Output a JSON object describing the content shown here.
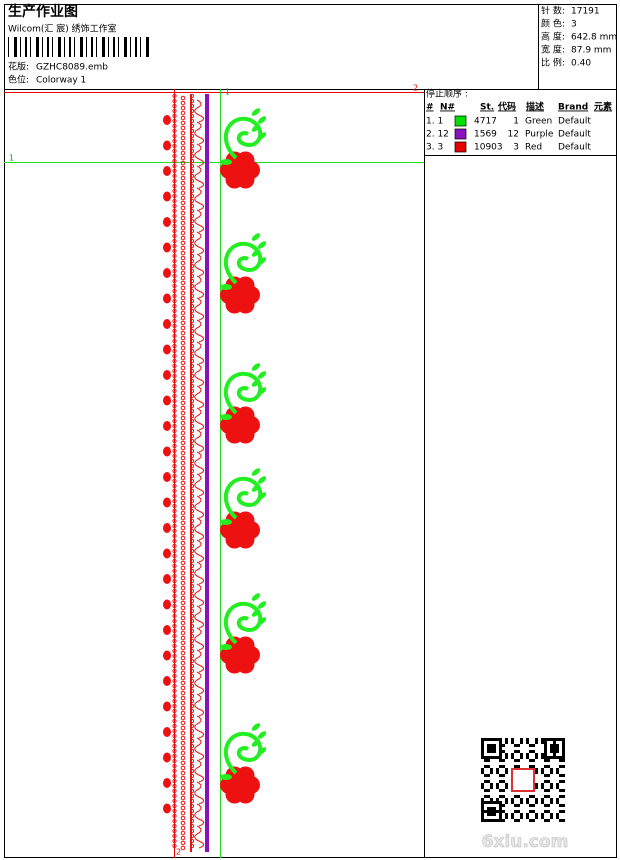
{
  "header": {
    "title": "生产作业图",
    "studio": "Wilcom(汇 宸) 绣饰工作室",
    "fields": [
      {
        "label": "花版:",
        "value": "GZHC8089.emb"
      },
      {
        "label": "色位:",
        "value": "Colorway 1"
      }
    ]
  },
  "info": [
    {
      "label": "针 数:",
      "value": "17191"
    },
    {
      "label": "颜 色:",
      "value": "3"
    },
    {
      "label": "高 度:",
      "value": "642.8 mm"
    },
    {
      "label": "宽 度:",
      "value": "87.9 mm"
    },
    {
      "label": "比 例:",
      "value": "0.40"
    }
  ],
  "stop_sequence": {
    "title": "停止顺序 :",
    "headers": [
      "#",
      "N#",
      "St.",
      "代码",
      "描述",
      "Brand",
      "元素"
    ],
    "rows": [
      {
        "index": "1. 1",
        "color": "#00e000",
        "stitches": "4717",
        "code": "1",
        "description": "Green",
        "brand": "Default"
      },
      {
        "index": "2. 12",
        "color": "#8a10c0",
        "stitches": "1569",
        "code": "12",
        "description": "Purple",
        "brand": "Default"
      },
      {
        "index": "3. 3",
        "color": "#e80000",
        "stitches": "10903",
        "code": "3",
        "description": "Red",
        "brand": "Default"
      }
    ]
  },
  "markers": [
    "1",
    "1",
    "2",
    "2"
  ],
  "watermark": "6xiu.com"
}
